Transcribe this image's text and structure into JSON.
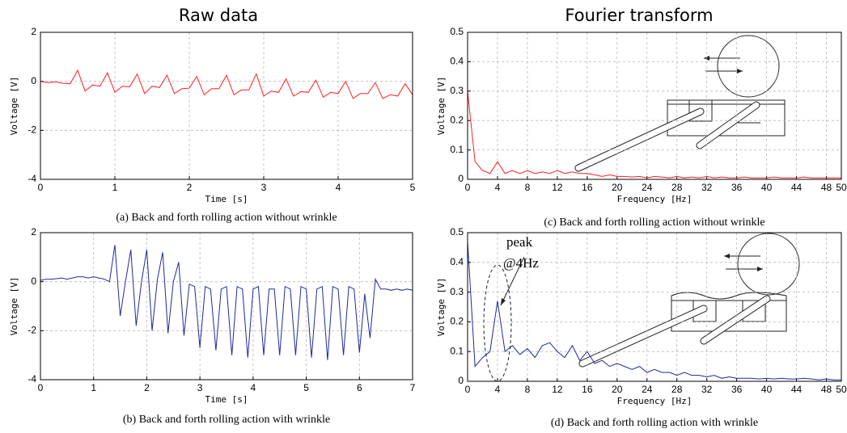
{
  "column_titles": [
    "Raw data",
    "Fourier transform"
  ],
  "chart_data": [
    {
      "type": "line",
      "caption": "(a) Back and forth rolling action without wrinkle",
      "xlabel": "Time [s]",
      "ylabel": "Voltage [V]",
      "color": "#ff2020",
      "xlim": [
        0,
        5
      ],
      "xticks": [
        0,
        1,
        2,
        3,
        4,
        5
      ],
      "ylim": [
        -4,
        2
      ],
      "yticks": [
        -4,
        -2,
        0,
        2
      ],
      "grid": true,
      "x": [
        0,
        0.1,
        0.2,
        0.3,
        0.4,
        0.5,
        0.6,
        0.7,
        0.8,
        0.9,
        1,
        1.1,
        1.2,
        1.3,
        1.4,
        1.5,
        1.6,
        1.7,
        1.8,
        1.9,
        2,
        2.1,
        2.2,
        2.3,
        2.4,
        2.5,
        2.6,
        2.7,
        2.8,
        2.9,
        3,
        3.1,
        3.2,
        3.3,
        3.4,
        3.5,
        3.6,
        3.7,
        3.8,
        3.9,
        4,
        4.1,
        4.2,
        4.3,
        4.4,
        4.5,
        4.6,
        4.7,
        4.8,
        4.9,
        5
      ],
      "values": [
        0,
        -0.05,
        -0.02,
        -0.08,
        -0.1,
        0.45,
        -0.4,
        -0.15,
        -0.2,
        0.35,
        -0.45,
        -0.2,
        -0.22,
        0.3,
        -0.5,
        -0.2,
        -0.25,
        0.25,
        -0.5,
        -0.3,
        -0.28,
        0.2,
        -0.55,
        -0.3,
        -0.3,
        0.25,
        -0.55,
        -0.35,
        -0.35,
        0.3,
        -0.6,
        -0.4,
        -0.45,
        0.1,
        -0.6,
        -0.42,
        -0.45,
        0.05,
        -0.65,
        -0.45,
        -0.5,
        0,
        -0.7,
        -0.5,
        -0.5,
        -0.05,
        -0.7,
        -0.55,
        -0.6,
        -0.1,
        -0.55
      ]
    },
    {
      "type": "line",
      "caption": "(b) Back and forth rolling action with wrinkle",
      "xlabel": "Time [s]",
      "ylabel": "Voltage [V]",
      "color": "#1f2a9a",
      "xlim": [
        0,
        7
      ],
      "xticks": [
        0,
        1,
        2,
        3,
        4,
        5,
        6,
        7
      ],
      "ylim": [
        -4,
        2
      ],
      "yticks": [
        -4,
        -2,
        0,
        2
      ],
      "grid": true,
      "x": [
        0,
        0.1,
        0.2,
        0.3,
        0.4,
        0.5,
        0.6,
        0.7,
        0.8,
        0.9,
        1,
        1.1,
        1.2,
        1.3,
        1.4,
        1.5,
        1.6,
        1.7,
        1.8,
        1.9,
        2,
        2.1,
        2.2,
        2.3,
        2.4,
        2.5,
        2.6,
        2.7,
        2.8,
        2.9,
        3,
        3.1,
        3.2,
        3.3,
        3.4,
        3.5,
        3.6,
        3.7,
        3.8,
        3.9,
        4,
        4.1,
        4.2,
        4.3,
        4.4,
        4.5,
        4.6,
        4.7,
        4.8,
        4.9,
        5,
        5.1,
        5.2,
        5.3,
        5.4,
        5.5,
        5.6,
        5.7,
        5.8,
        5.9,
        6,
        6.1,
        6.2,
        6.3,
        6.4,
        6.5,
        6.6,
        6.7,
        6.8,
        6.9,
        7
      ],
      "values": [
        0.05,
        0.1,
        0.1,
        0.12,
        0.15,
        0.1,
        0.15,
        0.2,
        0.2,
        0.15,
        0.2,
        0.15,
        0.1,
        0,
        1.5,
        -1.4,
        0,
        1.3,
        -1.8,
        0,
        1.3,
        -2,
        0.1,
        1.2,
        -2.1,
        0,
        0.8,
        -2.2,
        -0.1,
        -0.2,
        -2.7,
        -0.2,
        -0.3,
        -2.8,
        -0.3,
        -0.2,
        -3,
        -0.2,
        -0.3,
        -3.1,
        -0.3,
        -0.2,
        -3,
        -0.3,
        -0.3,
        -3,
        -0.2,
        -0.3,
        -3,
        -0.2,
        -0.3,
        -3.1,
        -0.3,
        -0.2,
        -3.2,
        -0.2,
        -0.3,
        -3,
        -0.2,
        -0.3,
        -2.9,
        -0.5,
        -2.3,
        0.1,
        -0.3,
        -0.3,
        -0.35,
        -0.3,
        -0.35,
        -0.3,
        -0.35
      ]
    },
    {
      "type": "line",
      "caption": "(c) Back and forth rolling action without wrinkle",
      "xlabel": "Frequency [Hz]",
      "ylabel": "Voltage [V]",
      "color": "#ff2020",
      "xlim": [
        0,
        50
      ],
      "xticks": [
        0,
        4,
        8,
        12,
        16,
        20,
        24,
        28,
        32,
        36,
        40,
        44,
        48,
        50
      ],
      "ylim": [
        0,
        0.5
      ],
      "yticks": [
        0,
        0.1,
        0.2,
        0.3,
        0.4,
        0.5
      ],
      "grid": true,
      "x": [
        0,
        1,
        2,
        3,
        4,
        5,
        6,
        7,
        8,
        9,
        10,
        11,
        12,
        13,
        14,
        15,
        16,
        17,
        18,
        19,
        20,
        21,
        22,
        23,
        24,
        25,
        26,
        27,
        28,
        29,
        30,
        31,
        32,
        33,
        34,
        35,
        36,
        37,
        38,
        39,
        40,
        41,
        42,
        43,
        44,
        45,
        46,
        47,
        48,
        49,
        50
      ],
      "values": [
        0.3,
        0.06,
        0.03,
        0.02,
        0.06,
        0.02,
        0.03,
        0.02,
        0.03,
        0.02,
        0.025,
        0.02,
        0.03,
        0.02,
        0.025,
        0.02,
        0.02,
        0.015,
        0.01,
        0.015,
        0.01,
        0.01,
        0.008,
        0.01,
        0.005,
        0.01,
        0.008,
        0.005,
        0.01,
        0.005,
        0.008,
        0.005,
        0.01,
        0.005,
        0.008,
        0.005,
        0.005,
        0.008,
        0.005,
        0.005,
        0.005,
        0.008,
        0.005,
        0.005,
        0.005,
        0.008,
        0.005,
        0.005,
        0.005,
        0.005,
        0.005
      ]
    },
    {
      "type": "line",
      "caption": "(d) Back and forth rolling action with wrinkle",
      "xlabel": "Frequency [Hz]",
      "ylabel": "Voltage [V]",
      "color": "#1f2a9a",
      "xlim": [
        0,
        50
      ],
      "xticks": [
        0,
        4,
        8,
        12,
        16,
        20,
        24,
        28,
        32,
        36,
        40,
        44,
        48,
        50
      ],
      "ylim": [
        0,
        0.5
      ],
      "yticks": [
        0,
        0.1,
        0.2,
        0.3,
        0.4,
        0.5
      ],
      "grid": true,
      "annotations": [
        "peak",
        "@4Hz"
      ],
      "x": [
        0,
        1,
        2,
        3,
        4,
        5,
        6,
        7,
        8,
        9,
        10,
        11,
        12,
        13,
        14,
        15,
        16,
        17,
        18,
        19,
        20,
        21,
        22,
        23,
        24,
        25,
        26,
        27,
        28,
        29,
        30,
        31,
        32,
        33,
        34,
        35,
        36,
        37,
        38,
        39,
        40,
        41,
        42,
        43,
        44,
        45,
        46,
        47,
        48,
        49,
        50
      ],
      "values": [
        0.47,
        0.05,
        0.08,
        0.1,
        0.27,
        0.1,
        0.12,
        0.09,
        0.11,
        0.08,
        0.12,
        0.13,
        0.1,
        0.08,
        0.12,
        0.07,
        0.1,
        0.06,
        0.07,
        0.05,
        0.06,
        0.05,
        0.04,
        0.05,
        0.03,
        0.04,
        0.03,
        0.03,
        0.02,
        0.03,
        0.02,
        0.02,
        0.015,
        0.02,
        0.01,
        0.015,
        0.01,
        0.01,
        0.01,
        0.008,
        0.01,
        0.008,
        0.01,
        0.008,
        0.008,
        0.01,
        0.008,
        0.005,
        0.008,
        0.005,
        0.005
      ]
    }
  ]
}
